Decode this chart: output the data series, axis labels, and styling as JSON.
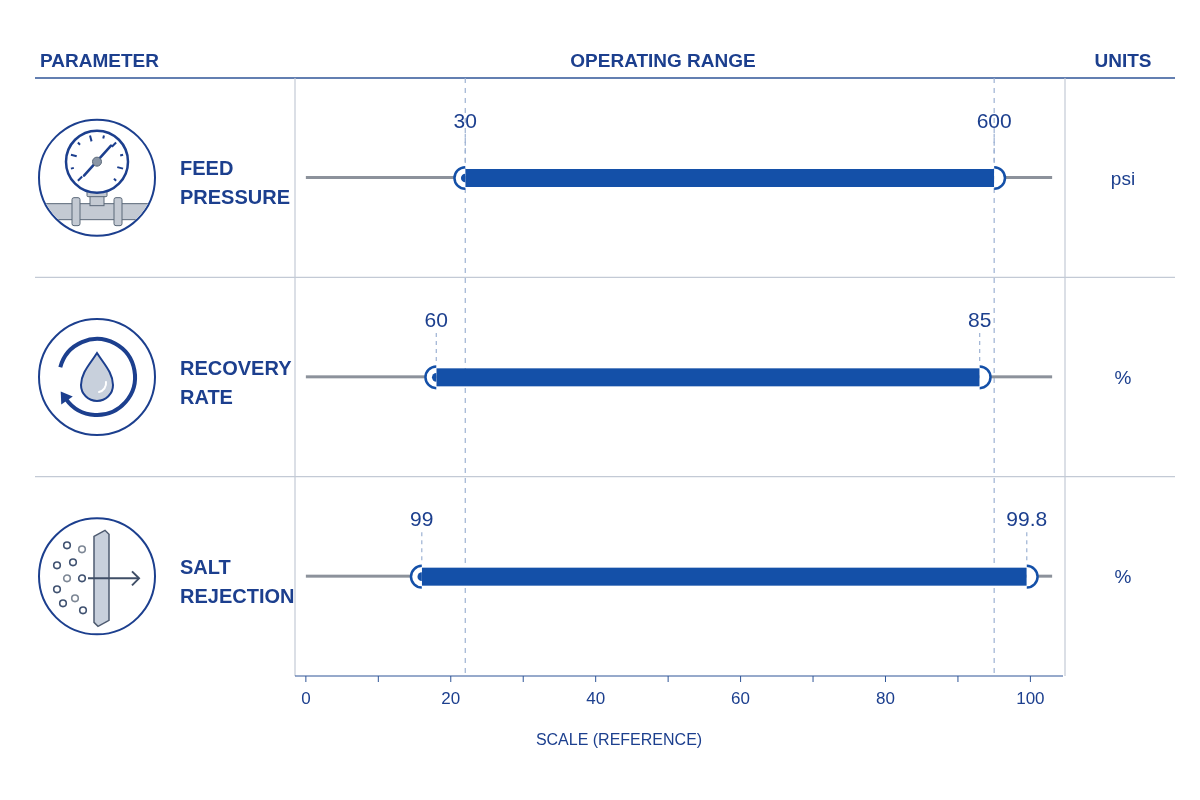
{
  "chart_data": {
    "type": "bar",
    "orientation": "horizontal",
    "title": "OPERATING RANGE",
    "xlabel": "SCALE (REFERENCE)",
    "ylabel": "PARAMETER",
    "y2label": "UNITS",
    "categories": [
      "FEED PRESSURE",
      "RECOVERY RATE",
      "SALT REJECTION"
    ],
    "y2_categories": [
      "psi",
      "%",
      "%"
    ],
    "series": [
      {
        "color": "#8c929b",
        "base": [
          0,
          0,
          0
        ],
        "values": [
          103,
          103,
          103
        ]
      },
      {
        "color": "#1450a8",
        "base": [
          22,
          18,
          16
        ],
        "values": [
          73,
          75,
          83.5
        ],
        "marker": "circle"
      }
    ],
    "xlim": [
      -1.5,
      104.5
    ],
    "xticks": [
      0,
      {
        "value": 10,
        "label": null
      },
      20,
      {
        "value": 30,
        "label": null
      },
      40,
      {
        "value": 50,
        "label": null
      },
      60,
      {
        "value": 70,
        "label": null
      },
      80,
      {
        "value": 90,
        "label": null
      },
      100
    ],
    "ref_lines": [
      {
        "axis": "x",
        "value": 22,
        "color": "#9db2d3",
        "line_style": "dashed"
      },
      {
        "axis": "x",
        "value": 95,
        "color": "#9db2d3",
        "line_style": "dashed"
      }
    ],
    "annotations": [
      {
        "text": "30",
        "x": 22,
        "y": "FEED PRESSURE"
      },
      {
        "text": "600",
        "x": 95,
        "y": "FEED PRESSURE"
      },
      {
        "text": "60",
        "x": 18,
        "y": "RECOVERY RATE"
      },
      {
        "text": "85",
        "x": 93,
        "y": "RECOVERY RATE"
      },
      {
        "text": "99",
        "x": 16,
        "y": "SALT REJECTION"
      },
      {
        "text": "99.8",
        "x": 99.5,
        "y": "SALT REJECTION"
      }
    ]
  }
}
